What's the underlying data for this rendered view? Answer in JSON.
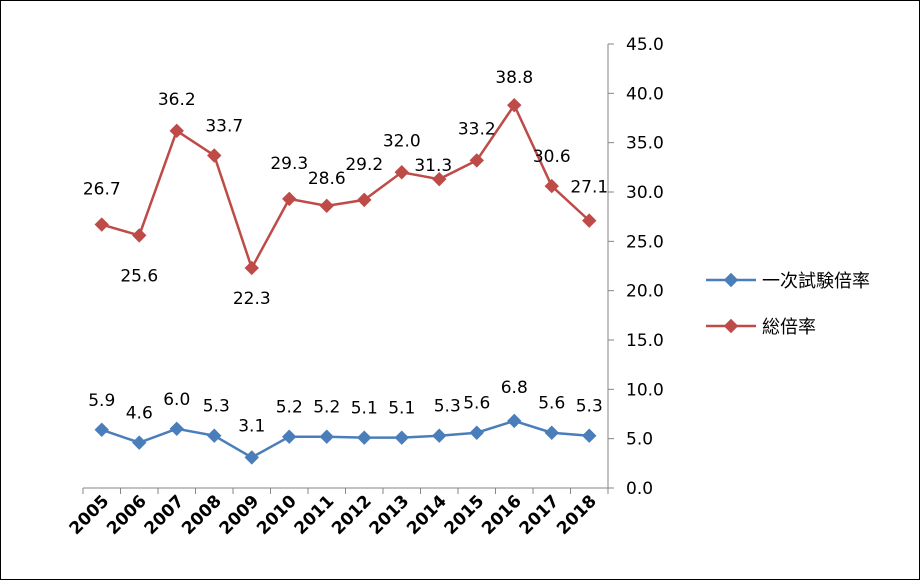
{
  "chart_data": {
    "type": "line",
    "title": "",
    "xlabel": "",
    "ylabel": "",
    "ylim": [
      0,
      45
    ],
    "y_ticks": [
      "0.0",
      "5.0",
      "10.0",
      "15.0",
      "20.0",
      "25.0",
      "30.0",
      "35.0",
      "40.0",
      "45.0"
    ],
    "y_axis_side": "right",
    "grid": false,
    "legend_position": "right",
    "categories": [
      "2005",
      "2006",
      "2007",
      "2008",
      "2009",
      "2010",
      "2011",
      "2012",
      "2013",
      "2014",
      "2015",
      "2016",
      "2017",
      "2018"
    ],
    "series": [
      {
        "name": "一次試験倍率",
        "color": "#4A7EBB",
        "marker": "diamond",
        "values": [
          5.9,
          4.6,
          6.0,
          5.3,
          3.1,
          5.2,
          5.2,
          5.1,
          5.1,
          5.3,
          5.6,
          6.8,
          5.6,
          5.3
        ],
        "labels": [
          "5.9",
          "4.6",
          "6.0",
          "5.3",
          "3.1",
          "5.2",
          "5.2",
          "5.1",
          "5.1",
          "5.3",
          "5.6",
          "6.8",
          "5.6",
          "5.3"
        ]
      },
      {
        "name": "総倍率",
        "color": "#BE4B48",
        "marker": "diamond",
        "values": [
          26.7,
          25.6,
          36.2,
          33.7,
          22.3,
          29.3,
          28.6,
          29.2,
          32.0,
          31.3,
          33.2,
          38.8,
          30.6,
          27.1
        ],
        "labels": [
          "26.7",
          "25.6",
          "36.2",
          "33.7",
          "22.3",
          "29.3",
          "28.6",
          "29.2",
          "32.0",
          "31.3",
          "33.2",
          "38.8",
          "30.6",
          "27.1"
        ]
      }
    ]
  }
}
